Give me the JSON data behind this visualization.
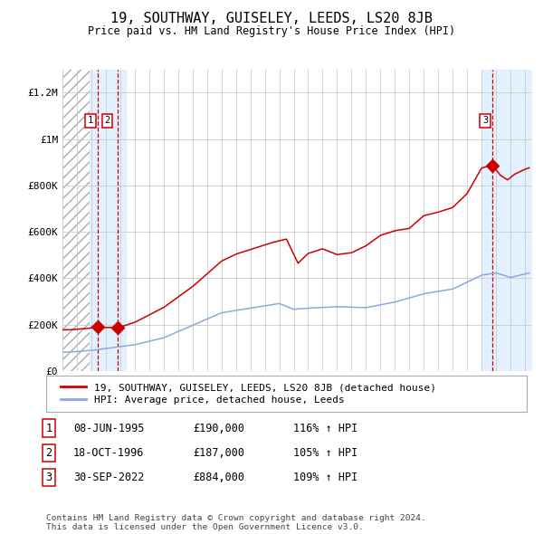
{
  "title": "19, SOUTHWAY, GUISELEY, LEEDS, LS20 8JB",
  "subtitle": "Price paid vs. HM Land Registry's House Price Index (HPI)",
  "title_fontsize": 11,
  "subtitle_fontsize": 9,
  "background_color": "#ffffff",
  "plot_bg_color": "#ffffff",
  "grid_color": "#cccccc",
  "xmin": 1993.0,
  "xmax": 2025.5,
  "ymin": 0,
  "ymax": 1300000,
  "yticks": [
    0,
    200000,
    400000,
    600000,
    800000,
    1000000,
    1200000
  ],
  "ytick_labels": [
    "£0",
    "£200K",
    "£400K",
    "£600K",
    "£800K",
    "£1M",
    "£1.2M"
  ],
  "xticks": [
    1993,
    1994,
    1995,
    1996,
    1997,
    1998,
    1999,
    2000,
    2001,
    2002,
    2003,
    2004,
    2005,
    2006,
    2007,
    2008,
    2009,
    2010,
    2011,
    2012,
    2013,
    2014,
    2015,
    2016,
    2017,
    2018,
    2019,
    2020,
    2021,
    2022,
    2023,
    2024,
    2025
  ],
  "sale_dates": [
    1995.44,
    1996.8,
    2022.75
  ],
  "sale_prices": [
    190000,
    187000,
    884000
  ],
  "sale_labels": [
    "1",
    "2",
    "3"
  ],
  "sale_color": "#cc0000",
  "hpi_color": "#88aadd",
  "hatch_color": "#aaaaaa",
  "shade_color": "#ddeeff",
  "legend_entries": [
    "19, SOUTHWAY, GUISELEY, LEEDS, LS20 8JB (detached house)",
    "HPI: Average price, detached house, Leeds"
  ],
  "table_rows": [
    [
      "1",
      "08-JUN-1995",
      "£190,000",
      "116% ↑ HPI"
    ],
    [
      "2",
      "18-OCT-1996",
      "£187,000",
      "105% ↑ HPI"
    ],
    [
      "3",
      "30-SEP-2022",
      "£884,000",
      "109% ↑ HPI"
    ]
  ],
  "footer": "Contains HM Land Registry data © Crown copyright and database right 2024.\nThis data is licensed under the Open Government Licence v3.0."
}
